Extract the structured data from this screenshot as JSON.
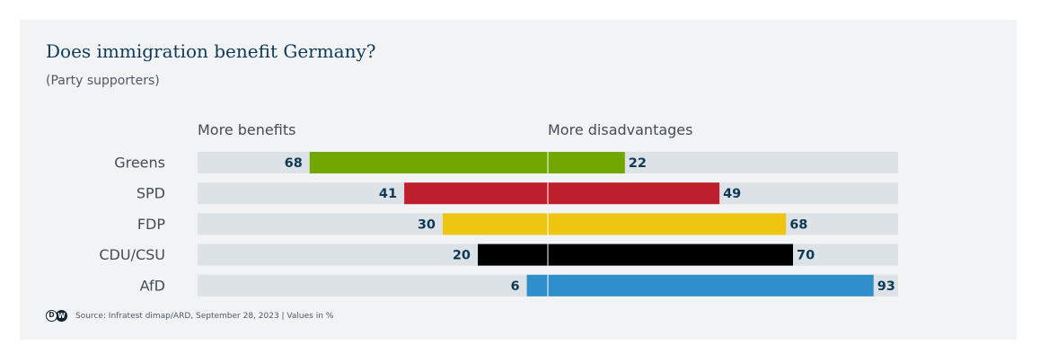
{
  "header": {
    "title": "Does immigration benefit Germany?",
    "subtitle": "(Party supporters)"
  },
  "footer": {
    "logo_left": "D",
    "logo_right": "W",
    "source": "Source: Infratest dimap/ARD, September 28, 2023 | Values in %"
  },
  "colors": {
    "background": "#f1f3f5",
    "track": "#dde2e7",
    "title": "#0f3a57",
    "value_label": "#0f3a57"
  },
  "chart_data": {
    "type": "bar",
    "orientation": "horizontal-diverging",
    "title": "Does immigration benefit Germany?",
    "subtitle": "(Party supporters)",
    "left_label": "More benefits",
    "right_label": "More disadvantages",
    "xlim": [
      0,
      100
    ],
    "unit": "%",
    "categories": [
      "Greens",
      "SPD",
      "FDP",
      "CDU/CSU",
      "AfD"
    ],
    "series": [
      {
        "name": "More benefits",
        "values": [
          68,
          41,
          30,
          20,
          6
        ]
      },
      {
        "name": "More disadvantages",
        "values": [
          22,
          49,
          68,
          70,
          93
        ]
      }
    ],
    "bar_colors": [
      "#72a700",
      "#be1f2c",
      "#eec510",
      "#000000",
      "#2f8fca"
    ]
  }
}
